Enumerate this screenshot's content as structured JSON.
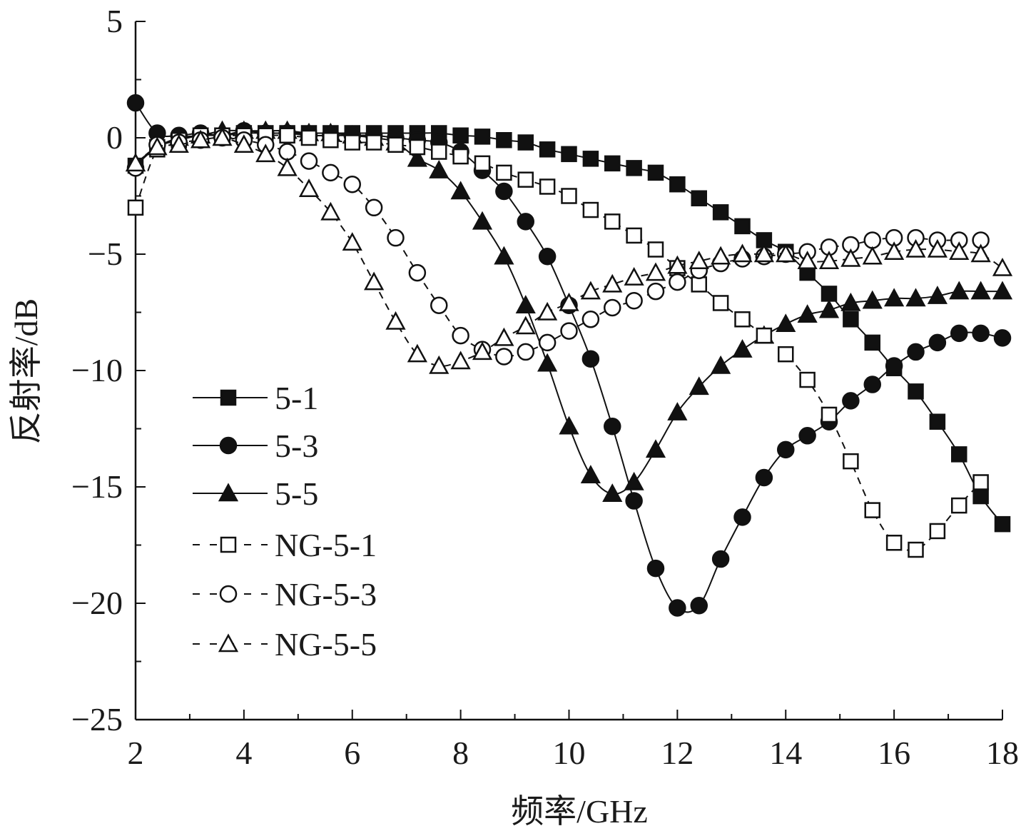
{
  "chart_data": {
    "type": "line",
    "title": "",
    "xlabel": "频率/GHz",
    "ylabel": "反射率/dB",
    "xlim": [
      2,
      18
    ],
    "ylim": [
      -25,
      5
    ],
    "xticks": [
      "2",
      "4",
      "6",
      "8",
      "10",
      "12",
      "14",
      "16",
      "18"
    ],
    "yticks": [
      "5",
      "0",
      "−5",
      "−10",
      "−15",
      "−20",
      "−25"
    ],
    "ytick_values": [
      5,
      0,
      -5,
      -10,
      -15,
      -20,
      -25
    ],
    "xtick_values": [
      2,
      4,
      6,
      8,
      10,
      12,
      14,
      16,
      18
    ],
    "grid": false,
    "legend_position": "left-middle",
    "x": [
      2.0,
      2.4,
      2.8,
      3.2,
      3.6,
      4.0,
      4.4,
      4.8,
      5.2,
      5.6,
      6.0,
      6.4,
      6.8,
      7.2,
      7.6,
      8.0,
      8.4,
      8.8,
      9.2,
      9.6,
      10.0,
      10.4,
      10.8,
      11.2,
      11.6,
      12.0,
      12.4,
      12.8,
      13.2,
      13.6,
      14.0,
      14.4,
      14.8,
      15.2,
      15.6,
      16.0,
      16.4,
      16.8,
      17.2,
      17.6,
      18.0
    ],
    "series": [
      {
        "name": "5-1",
        "marker": "square",
        "filled": true,
        "dashed": false,
        "values": [
          -1.2,
          -0.4,
          -0.1,
          0.1,
          0.1,
          0.2,
          0.2,
          0.2,
          0.2,
          0.2,
          0.2,
          0.2,
          0.2,
          0.2,
          0.2,
          0.1,
          0.05,
          -0.1,
          -0.2,
          -0.5,
          -0.7,
          -0.9,
          -1.1,
          -1.3,
          -1.5,
          -2.0,
          -2.6,
          -3.2,
          -3.8,
          -4.4,
          -4.9,
          -5.8,
          -6.7,
          -7.8,
          -8.8,
          -9.9,
          -10.9,
          -12.2,
          -13.6,
          -15.4,
          -16.6
        ]
      },
      {
        "name": "5-3",
        "marker": "circle",
        "filled": true,
        "dashed": false,
        "values": [
          1.5,
          0.2,
          0.1,
          0.2,
          0.1,
          0.3,
          0.2,
          0.2,
          0.1,
          0.1,
          0.1,
          0.1,
          0.0,
          -0.1,
          -0.2,
          -0.6,
          -1.4,
          -2.3,
          -3.6,
          -5.1,
          -7.2,
          -9.5,
          -12.4,
          -15.6,
          -18.5,
          -20.2,
          -20.1,
          -18.1,
          -16.3,
          -14.6,
          -13.4,
          -12.8,
          -12.2,
          -11.3,
          -10.6,
          -9.8,
          -9.2,
          -8.8,
          -8.4,
          -8.4,
          -8.6
        ]
      },
      {
        "name": "5-5",
        "marker": "triangle",
        "filled": true,
        "dashed": false,
        "values": [
          -1.1,
          -0.4,
          0.0,
          0.1,
          0.3,
          0.3,
          0.3,
          0.3,
          0.2,
          0.2,
          0.1,
          0.0,
          -0.2,
          -0.9,
          -1.4,
          -2.3,
          -3.6,
          -5.1,
          -7.2,
          -9.7,
          -12.4,
          -14.5,
          -15.3,
          -14.8,
          -13.4,
          -11.8,
          -10.7,
          -9.8,
          -9.1,
          -8.5,
          -8.0,
          -7.6,
          -7.4,
          -7.1,
          -7.0,
          -6.9,
          -6.9,
          -6.8,
          -6.6,
          -6.6,
          -6.6
        ]
      },
      {
        "name": "NG-5-1",
        "marker": "square",
        "filled": false,
        "dashed": true,
        "values": [
          -3.0,
          -0.5,
          -0.1,
          0.1,
          0.1,
          0.1,
          0.1,
          0.1,
          0.0,
          -0.1,
          -0.2,
          -0.2,
          -0.3,
          -0.4,
          -0.6,
          -0.8,
          -1.1,
          -1.5,
          -1.8,
          -2.1,
          -2.5,
          -3.1,
          -3.6,
          -4.2,
          -4.8,
          -5.6,
          -6.3,
          -7.1,
          -7.8,
          -8.5,
          -9.3,
          -10.4,
          -11.9,
          -13.9,
          -16.0,
          -17.4,
          -17.7,
          -16.9,
          -15.8,
          -14.8,
          null
        ]
      },
      {
        "name": "NG-5-3",
        "marker": "circle",
        "filled": false,
        "dashed": true,
        "values": [
          -1.3,
          -0.3,
          -0.2,
          -0.1,
          0.0,
          -0.1,
          -0.3,
          -0.6,
          -1.0,
          -1.5,
          -2.0,
          -3.0,
          -4.3,
          -5.8,
          -7.2,
          -8.5,
          -9.1,
          -9.4,
          -9.2,
          -8.8,
          -8.3,
          -7.8,
          -7.3,
          -7.0,
          -6.6,
          -6.2,
          -5.7,
          -5.4,
          -5.2,
          -5.1,
          -5.0,
          -4.9,
          -4.7,
          -4.6,
          -4.4,
          -4.3,
          -4.3,
          -4.4,
          -4.4,
          -4.4,
          null
        ]
      },
      {
        "name": "NG-5-5",
        "marker": "triangle",
        "filled": false,
        "dashed": true,
        "values": [
          -1.1,
          -0.4,
          -0.3,
          -0.1,
          0.0,
          -0.3,
          -0.7,
          -1.3,
          -2.2,
          -3.2,
          -4.5,
          -6.2,
          -7.9,
          -9.3,
          -9.8,
          -9.6,
          -9.2,
          -8.6,
          -8.1,
          -7.5,
          -7.1,
          -6.6,
          -6.3,
          -6.0,
          -5.8,
          -5.5,
          -5.3,
          -5.1,
          -5.0,
          -5.0,
          -5.0,
          -5.3,
          -5.3,
          -5.2,
          -5.1,
          -4.9,
          -4.8,
          -4.8,
          -4.9,
          -5.0,
          -5.6
        ]
      }
    ]
  },
  "colors": {
    "line": "#111111",
    "fill": "#111111",
    "open_fill": "#ffffff"
  }
}
